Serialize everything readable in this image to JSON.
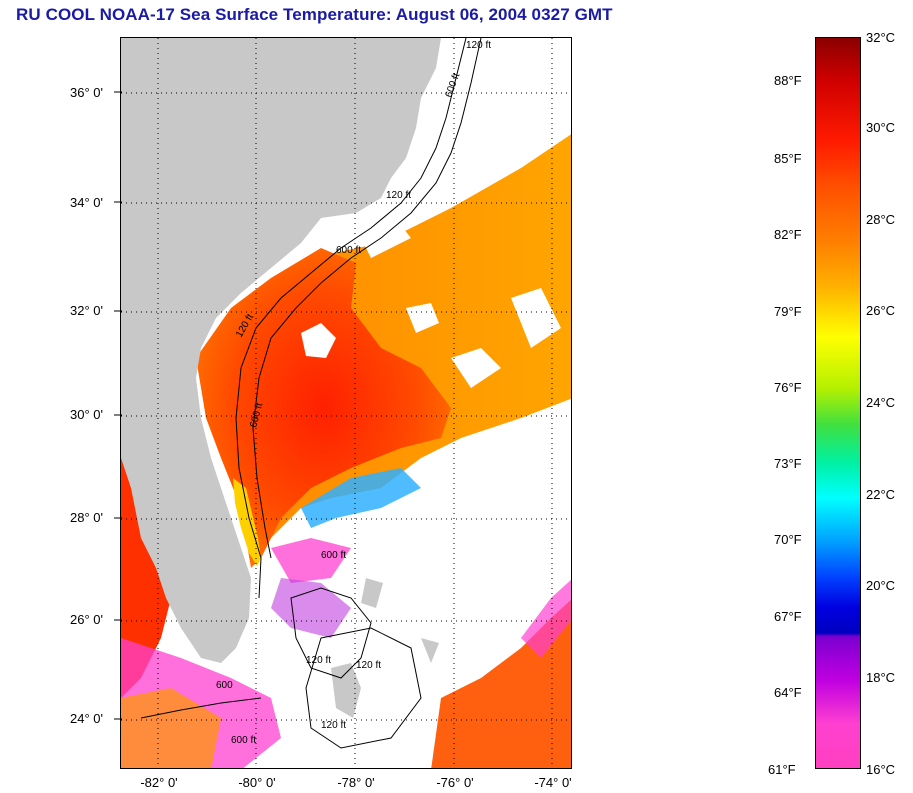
{
  "title": "RU COOL  NOAA-17  Sea Surface Temperature:  August 06, 2004 0327 GMT",
  "map": {
    "lat_labels": [
      "36° 0'",
      "34° 0'",
      "32° 0'",
      "30° 0'",
      "28° 0'",
      "26° 0'",
      "24° 0'"
    ],
    "lon_labels": [
      "-82° 0'",
      "-80° 0'",
      "-78° 0'",
      "-76° 0'",
      "-74° 0'"
    ],
    "contour_labels": [
      "120 ft",
      "600 ft",
      "120 ft",
      "600 ft",
      "120 ft",
      "600 ft",
      "120 ft",
      "600 ft",
      "120 ft",
      "600",
      "600 ft",
      "120 ft"
    ],
    "colors": {
      "land": "#c8c8c8",
      "cloud": "#ffffff",
      "warm": "#ff5a10",
      "hot": "#ff2a00",
      "orange": "#ff8c00",
      "yellow": "#ffd000",
      "cool": "#ff40d0"
    }
  },
  "colorbar": {
    "celsius": [
      "32°C",
      "30°C",
      "28°C",
      "26°C",
      "24°C",
      "22°C",
      "20°C",
      "18°C",
      "16°C"
    ],
    "fahrenheit": [
      "88°F",
      "85°F",
      "82°F",
      "79°F",
      "76°F",
      "73°F",
      "70°F",
      "67°F",
      "64°F",
      "61°F"
    ],
    "range_c": [
      16,
      32
    ],
    "range_f": [
      61,
      89.6
    ]
  }
}
